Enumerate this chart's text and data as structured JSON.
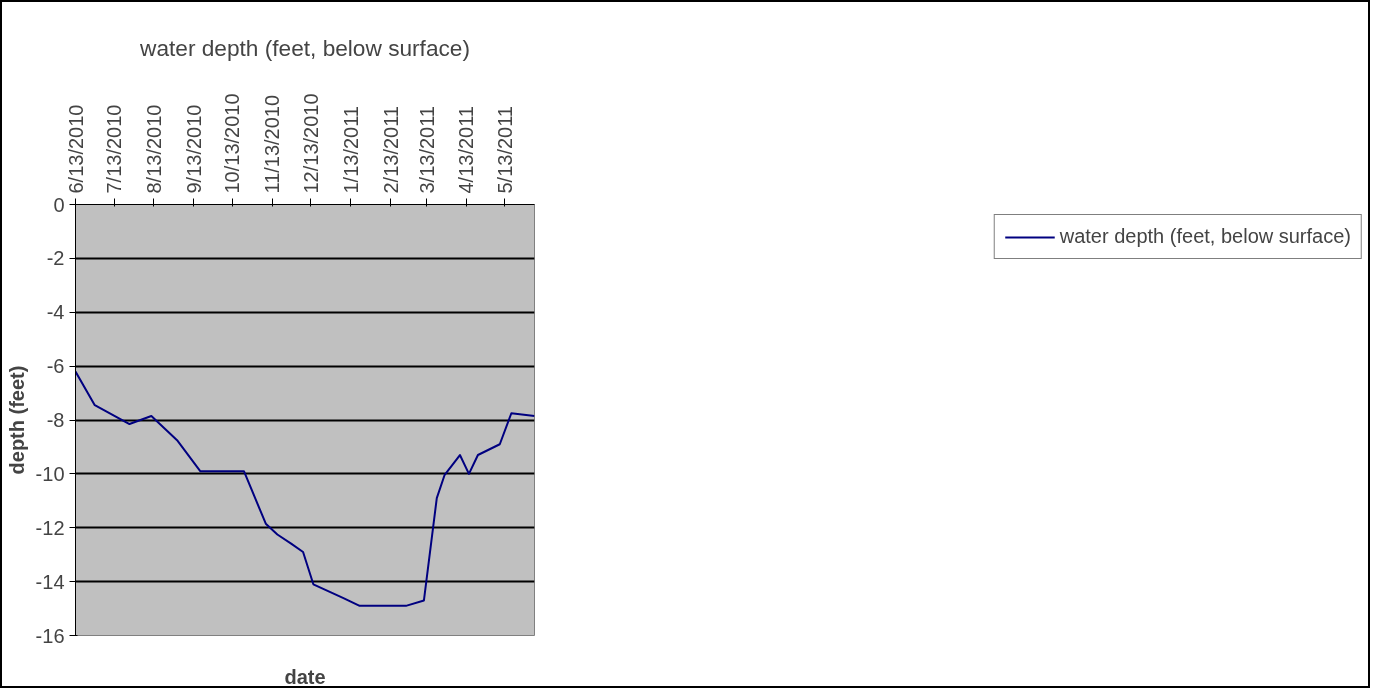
{
  "chart_data": {
    "type": "line",
    "title": "water depth (feet, below surface)",
    "xlabel": "date",
    "ylabel": "depth (feet)",
    "x": [
      "2010-06-13",
      "2010-06-28",
      "2010-07-25",
      "2010-08-11",
      "2010-08-31",
      "2010-09-18",
      "2010-10-22",
      "2010-11-08",
      "2010-11-17",
      "2010-11-28",
      "2010-12-07",
      "2010-12-15",
      "2011-01-07",
      "2011-01-20",
      "2011-02-25",
      "2011-03-11",
      "2011-03-21",
      "2011-03-27",
      "2011-04-08",
      "2011-04-15",
      "2011-04-22",
      "2011-05-09",
      "2011-05-18",
      "2011-06-05"
    ],
    "series": [
      {
        "name": "water depth (feet, below surface)",
        "color": "#000080",
        "values": [
          -6.2,
          -7.45,
          -8.15,
          -7.85,
          -8.75,
          -9.9,
          -9.9,
          -11.85,
          -12.25,
          -12.6,
          -12.9,
          -14.1,
          -14.6,
          -14.9,
          -14.9,
          -14.7,
          -10.9,
          -10.05,
          -9.3,
          -10.0,
          -9.3,
          -8.9,
          -7.75,
          -7.85
        ]
      }
    ],
    "xlim": [
      "2010-06-13",
      "2011-06-05"
    ],
    "xticks": [
      {
        "value": "2010-06-13",
        "label": "6/13/2010"
      },
      {
        "value": "2010-07-13",
        "label": "7/13/2010"
      },
      {
        "value": "2010-08-13",
        "label": "8/13/2010"
      },
      {
        "value": "2010-09-13",
        "label": "9/13/2010"
      },
      {
        "value": "2010-10-13",
        "label": "10/13/2010"
      },
      {
        "value": "2010-11-13",
        "label": "11/13/2010"
      },
      {
        "value": "2010-12-13",
        "label": "12/13/2010"
      },
      {
        "value": "2011-01-13",
        "label": "1/13/2011"
      },
      {
        "value": "2011-02-13",
        "label": "2/13/2011"
      },
      {
        "value": "2011-03-13",
        "label": "3/13/2011"
      },
      {
        "value": "2011-04-13",
        "label": "4/13/2011"
      },
      {
        "value": "2011-05-13",
        "label": "5/13/2011"
      }
    ],
    "ylim": [
      -16,
      0
    ],
    "yticks": [
      -16,
      -14,
      -12,
      -10,
      -8,
      -6,
      -4,
      -2,
      0
    ],
    "grid": "y",
    "legend": "right",
    "marker": "none",
    "line_style": "solid"
  }
}
